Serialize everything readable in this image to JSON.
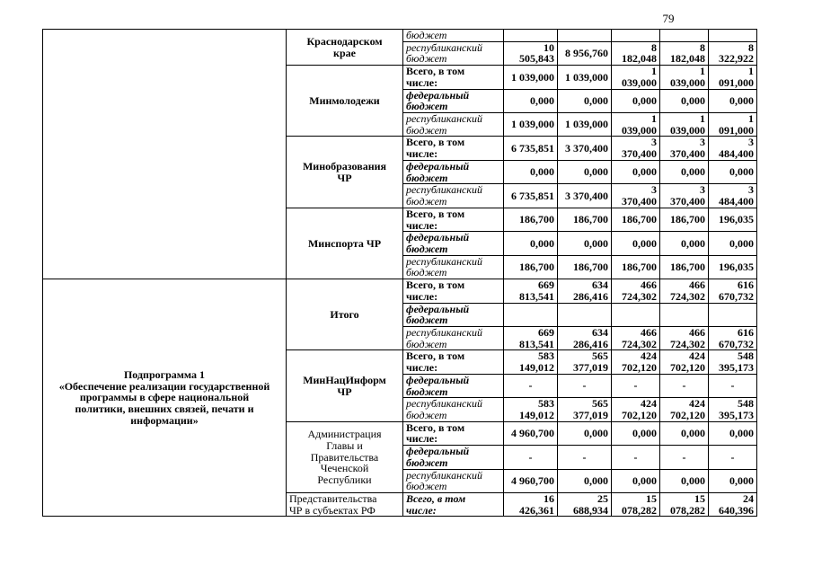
{
  "page": {
    "number": "79"
  },
  "colors": {
    "border": "#000000",
    "text": "#000000",
    "background": "#ffffff"
  },
  "table": {
    "sections": [
      {
        "program": "",
        "groups": [
          {
            "entity": "Краснодарском\nкрае",
            "entity_style": "bold",
            "rows": [
              {
                "label": "бюджет",
                "style": "italic",
                "values": [
                  "",
                  "",
                  "",
                  "",
                  ""
                ]
              },
              {
                "label": "республиканский\nбюджет",
                "style": "italic",
                "values": [
                  "10 505,843",
                  "8 956,760",
                  "8 182,048",
                  "8 182,048",
                  "8 322,922"
                ]
              }
            ]
          },
          {
            "entity": "Минмолодежи",
            "entity_style": "bold",
            "rows": [
              {
                "label": "Всего, в том\nчисле:",
                "style": "bold",
                "values": [
                  "1 039,000",
                  "1 039,000",
                  "1 039,000",
                  "1 039,000",
                  "1 091,000"
                ]
              },
              {
                "label": "федеральный\nбюджет",
                "style": "bold-italic",
                "values": [
                  "0,000",
                  "0,000",
                  "0,000",
                  "0,000",
                  "0,000"
                ]
              },
              {
                "label": "республиканский\nбюджет",
                "style": "italic",
                "values": [
                  "1 039,000",
                  "1 039,000",
                  "1 039,000",
                  "1 039,000",
                  "1 091,000"
                ]
              }
            ]
          },
          {
            "entity": "Минобразования\nЧР",
            "entity_style": "bold",
            "rows": [
              {
                "label": "Всего, в том\nчисле:",
                "style": "bold",
                "values": [
                  "6 735,851",
                  "3 370,400",
                  "3 370,400",
                  "3 370,400",
                  "3 484,400"
                ]
              },
              {
                "label": "федеральный\nбюджет",
                "style": "bold-italic",
                "values": [
                  "0,000",
                  "0,000",
                  "0,000",
                  "0,000",
                  "0,000"
                ]
              },
              {
                "label": "республиканский\nбюджет",
                "style": "italic",
                "values": [
                  "6 735,851",
                  "3 370,400",
                  "3 370,400",
                  "3 370,400",
                  "3 484,400"
                ]
              }
            ]
          },
          {
            "entity": "Минспорта ЧР",
            "entity_style": "bold",
            "rows": [
              {
                "label": "Всего, в том\nчисле:",
                "style": "bold",
                "values": [
                  "186,700",
                  "186,700",
                  "186,700",
                  "186,700",
                  "196,035"
                ]
              },
              {
                "label": "федеральный\nбюджет",
                "style": "bold-italic",
                "values": [
                  "0,000",
                  "0,000",
                  "0,000",
                  "0,000",
                  "0,000"
                ]
              },
              {
                "label": "республиканский\nбюджет",
                "style": "italic",
                "values": [
                  "186,700",
                  "186,700",
                  "186,700",
                  "186,700",
                  "196,035"
                ]
              }
            ]
          }
        ]
      },
      {
        "program": "Подпрограмма 1\n«Обеспечение реализации государственной\nпрограммы в сфере национальной\nполитики, внешних связей, печати и\nинформации»",
        "groups": [
          {
            "entity": "Итого",
            "entity_style": "bold",
            "rows": [
              {
                "label": "Всего, в том\nчисле:",
                "style": "bold",
                "values": [
                  "669 813,541",
                  "634 286,416",
                  "466 724,302",
                  "466 724,302",
                  "616 670,732"
                ]
              },
              {
                "label": "федеральный\nбюджет",
                "style": "bold-italic",
                "values": [
                  "",
                  "",
                  "",
                  "",
                  ""
                ]
              },
              {
                "label": "республиканский\nбюджет",
                "style": "italic",
                "values": [
                  "669 813,541",
                  "634 286,416",
                  "466 724,302",
                  "466 724,302",
                  "616 670,732"
                ]
              }
            ]
          },
          {
            "entity": "МинНацИнформ\nЧР",
            "entity_style": "bold",
            "rows": [
              {
                "label": "Всего, в том\nчисле:",
                "style": "bold",
                "values": [
                  "583 149,012",
                  "565 377,019",
                  "424 702,120",
                  "424 702,120",
                  "548 395,173"
                ]
              },
              {
                "label": "федеральный\nбюджет",
                "style": "bold-italic",
                "values": [
                  "-",
                  "-",
                  "-",
                  "-",
                  "-"
                ]
              },
              {
                "label": "республиканский\nбюджет",
                "style": "italic",
                "values": [
                  "583 149,012",
                  "565 377,019",
                  "424 702,120",
                  "424 702,120",
                  "548 395,173"
                ]
              }
            ]
          },
          {
            "entity": "Администрация\nГлавы и\nПравительства\nЧеченской\nРеспублики",
            "entity_style": "regular",
            "rows": [
              {
                "label": "Всего, в том\nчисле:",
                "style": "bold",
                "values": [
                  "4 960,700",
                  "0,000",
                  "0,000",
                  "0,000",
                  "0,000"
                ]
              },
              {
                "label": "федеральный\nбюджет",
                "style": "bold-italic",
                "values": [
                  "-",
                  "-",
                  "-",
                  "-",
                  "-"
                ]
              },
              {
                "label": "республиканский\nбюджет",
                "style": "italic",
                "values": [
                  "4 960,700",
                  "0,000",
                  "0,000",
                  "0,000",
                  "0,000"
                ]
              }
            ]
          },
          {
            "entity": "Представительства\nЧР в субъектах РФ",
            "entity_style": "regular-left",
            "rows": [
              {
                "label": "Всего, в том\nчисле:",
                "style": "bold-italic",
                "values": [
                  "16 426,361",
                  "25 688,934",
                  "15 078,282",
                  "15 078,282",
                  "24 640,396"
                ]
              }
            ]
          }
        ]
      }
    ]
  }
}
